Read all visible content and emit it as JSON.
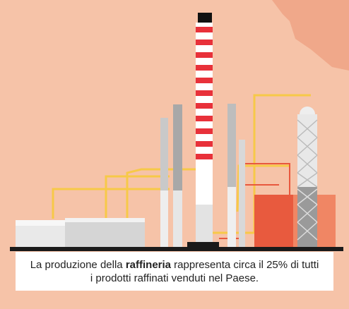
{
  "caption": {
    "before": "La produzione della ",
    "bold": "raffineria",
    "after": " rappresenta circa il 25% di tutti",
    "line2": "i prodotti raffinati venduti nel Paese."
  }
}
